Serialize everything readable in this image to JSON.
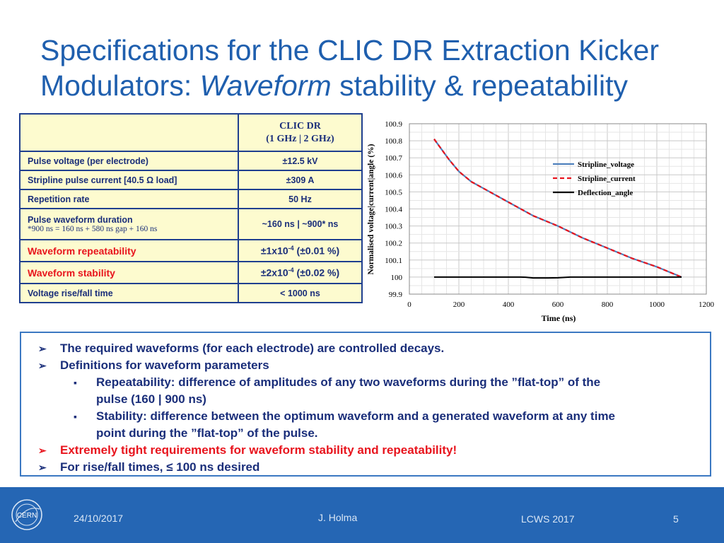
{
  "slide": {
    "title_part1": "Specifications for the CLIC DR Extraction Kicker Modulators: ",
    "title_italic": "Waveform",
    "title_part2": " stability & repeatability"
  },
  "spec_table": {
    "header_line1": "CLIC DR",
    "header_line2": "(1 GHz | 2 GHz)",
    "rows": [
      {
        "label": "Pulse voltage (per electrode)",
        "value": "±12.5 kV"
      },
      {
        "label": "Stripline pulse current [40.5 Ω load]",
        "value": "±309 A"
      },
      {
        "label": "Repetition rate",
        "value": "50 Hz"
      },
      {
        "label": "Pulse waveform duration",
        "note": "*900 ns = 160 ns + 580 ns gap + 160 ns",
        "value": "~160 ns | ~900* ns"
      },
      {
        "label": "Waveform repeatability",
        "value_base": "±1x10",
        "value_exp": "-4",
        "value_tail": " (±0.01 %)"
      },
      {
        "label": "Waveform stability",
        "value_base": "±2x10",
        "value_exp": "-4",
        "value_tail": "  (±0.02 %)"
      },
      {
        "label": "Voltage rise/fall time",
        "value": "< 1000 ns"
      }
    ]
  },
  "chart_data": {
    "type": "line",
    "title": "",
    "xlabel": "Time (ns)",
    "ylabel": "Normalised voltage|current|angle (%)",
    "xlim": [
      0,
      1200
    ],
    "ylim": [
      99.9,
      100.9
    ],
    "xticks": [
      "0",
      "200",
      "400",
      "600",
      "800",
      "1000",
      "1200"
    ],
    "yticks": [
      "99.9",
      "100",
      "100.1",
      "100.2",
      "100.3",
      "100.4",
      "100.5",
      "100.6",
      "100.7",
      "100.8",
      "100.9"
    ],
    "grid": true,
    "legend_position": "top-right",
    "series": [
      {
        "name": "Stripline_voltage",
        "color": "#4f81bd",
        "style": "solid",
        "x": [
          100,
          130,
          160,
          200,
          250,
          300,
          400,
          500,
          600,
          700,
          800,
          900,
          1000,
          1050,
          1100
        ],
        "y": [
          100.81,
          100.75,
          100.69,
          100.62,
          100.56,
          100.52,
          100.44,
          100.36,
          100.3,
          100.23,
          100.17,
          100.11,
          100.06,
          100.03,
          100.0
        ]
      },
      {
        "name": "Stripline_current",
        "color": "#e8141d",
        "style": "dashed",
        "x": [
          100,
          130,
          160,
          200,
          250,
          300,
          400,
          500,
          600,
          700,
          800,
          900,
          1000,
          1050,
          1100
        ],
        "y": [
          100.81,
          100.75,
          100.69,
          100.62,
          100.56,
          100.52,
          100.44,
          100.36,
          100.3,
          100.23,
          100.17,
          100.11,
          100.06,
          100.03,
          100.0
        ]
      },
      {
        "name": "Deflection_angle",
        "color": "#000000",
        "style": "solid",
        "x": [
          100,
          300,
          400,
          450,
          470,
          500,
          560,
          600,
          650,
          700,
          800,
          900,
          1000,
          1100
        ],
        "y": [
          100.0,
          100.0,
          100.0,
          100.0,
          99.999,
          99.995,
          99.995,
          99.996,
          100.0,
          100.0,
          100.0,
          100.0,
          100.0,
          100.0
        ]
      }
    ]
  },
  "bullets": [
    {
      "text": "The required waveforms (for each electrode) are controlled decays.",
      "level": 1
    },
    {
      "text": "Definitions for waveform parameters",
      "level": 1
    },
    {
      "text": "Repeatability: difference of amplitudes of any two waveforms during the ”flat-top” of the",
      "level": 2
    },
    {
      "text": "pulse (160 | 900 ns)",
      "level": 3
    },
    {
      "text": "Stability: difference between the optimum waveform and a generated waveform at any time",
      "level": 2
    },
    {
      "text": "point during the ”flat-top” of the pulse.",
      "level": 3
    },
    {
      "text": "Extremely tight requirements for waveform stability and repeatability!",
      "level": 1,
      "highlight": true
    },
    {
      "text": "For rise/fall times, ≤ 100 ns desired",
      "level": 1
    }
  ],
  "footer": {
    "logo_text": "CERN",
    "date": "24/10/2017",
    "author": "J. Holma",
    "event": "LCWS 2017",
    "page": "5"
  },
  "colors": {
    "title": "#1f5fae",
    "table_bg": "#fdfbcf",
    "highlight_red": "#e8141d",
    "footer_bg": "#2566b4"
  }
}
